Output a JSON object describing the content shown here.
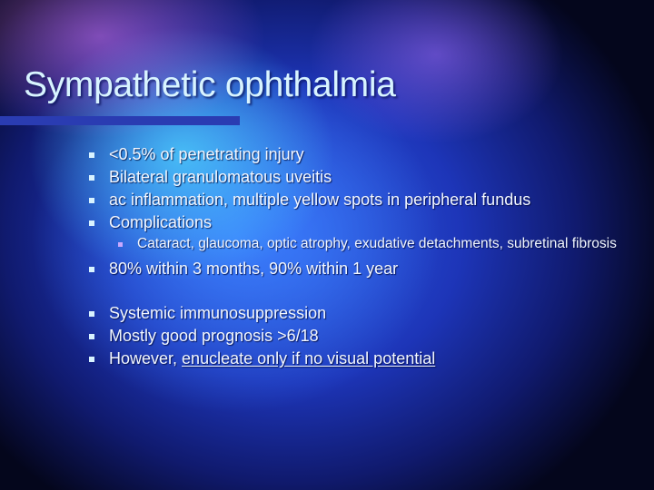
{
  "slide": {
    "title": "Sympathetic ophthalmia",
    "bullets": [
      {
        "text": "<0.5% of penetrating injury"
      },
      {
        "text": "Bilateral granulomatous uveitis"
      },
      {
        "text": "ac inflammation, multiple yellow spots in peripheral fundus"
      },
      {
        "text": "Complications",
        "sub": [
          "Cataract, glaucoma, optic atrophy, exudative detachments, subretinal fibrosis"
        ]
      },
      {
        "text": "80% within 3 months, 90% within 1 year"
      },
      {
        "text": "Systemic immunosuppression"
      },
      {
        "text": "Mostly good prognosis >6/18"
      },
      {
        "text": "However, ",
        "underlined": "enucleate only if no visual potential"
      }
    ]
  },
  "colors": {
    "title_text": "#d8f4ff",
    "body_text": "#f2f7ff",
    "bullet_level1": "#d9f3ff",
    "bullet_level2": "#c8a8ff",
    "title_bar": "#2a3cb2"
  },
  "icons": {
    "bullet_level1": "square-bullet-icon",
    "bullet_level2": "small-square-bullet-icon"
  }
}
